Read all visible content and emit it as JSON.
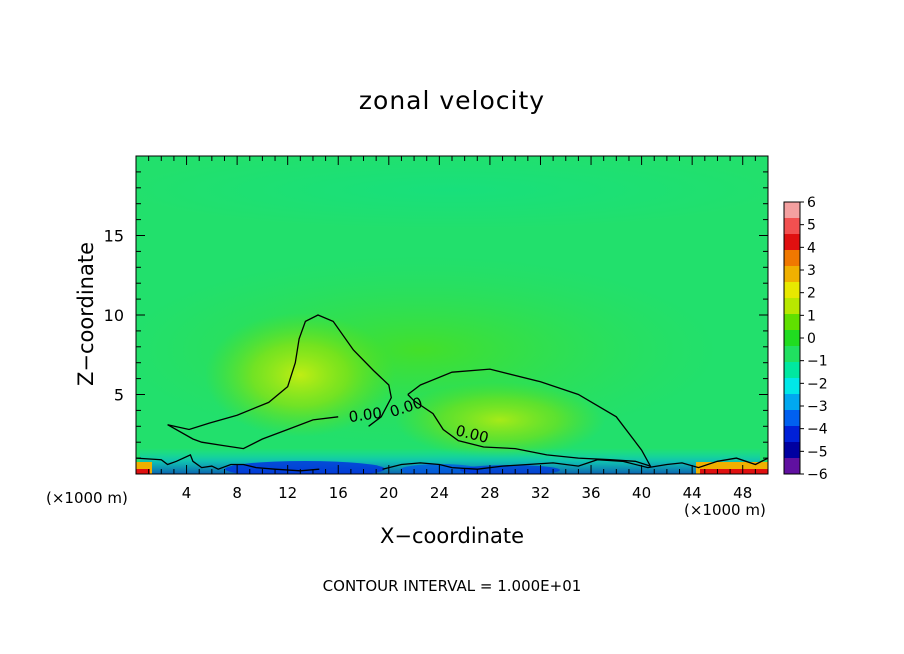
{
  "chart_data": {
    "type": "heatmap",
    "title": "zonal velocity",
    "xlabel": "X−coordinate",
    "ylabel": "Z−coordinate",
    "x_unit_note": "(×1000 m)",
    "z_unit_note": "(×1000 m)",
    "footnote": "CONTOUR INTERVAL = 1.000E+01",
    "xlim": [
      0,
      50
    ],
    "ylim": [
      0,
      20
    ],
    "x_ticks": [
      4,
      8,
      12,
      16,
      20,
      24,
      28,
      32,
      36,
      40,
      44,
      48
    ],
    "y_ticks": [
      5,
      10,
      15
    ],
    "colorbar": {
      "labels": [
        "6",
        "5",
        "4",
        "3",
        "2",
        "1",
        "0",
        "−1",
        "−2",
        "−3",
        "−4",
        "−5",
        "−6"
      ],
      "colors": [
        "#f4a0a0",
        "#f25050",
        "#e01010",
        "#f07800",
        "#f0b000",
        "#e8e800",
        "#b8e800",
        "#60e000",
        "#20dc20",
        "#20e060",
        "#00e8a0",
        "#00e8e8",
        "#00a8f0",
        "#0060f0",
        "#0020d8",
        "#0000a0",
        "#6010a0"
      ]
    },
    "contour_label": "0.00",
    "contours": [
      {
        "label": "0.00",
        "points": [
          [
            2.5,
            3.1
          ],
          [
            4.2,
            2.8
          ],
          [
            5.8,
            3.2
          ],
          [
            8,
            3.7
          ],
          [
            10.5,
            4.5
          ],
          [
            12,
            5.5
          ],
          [
            12.6,
            7
          ],
          [
            12.9,
            8.5
          ],
          [
            13.4,
            9.6
          ],
          [
            14.4,
            10
          ],
          [
            15.6,
            9.6
          ],
          [
            17.2,
            7.8
          ],
          [
            18.8,
            6.5
          ],
          [
            20,
            5.6
          ],
          [
            20.2,
            4.8
          ],
          [
            19.4,
            3.6
          ],
          [
            18.4,
            3
          ]
        ]
      },
      {
        "label": "0.00",
        "points": [
          [
            2.5,
            3.1
          ],
          [
            4.5,
            2.2
          ],
          [
            5.2,
            2
          ],
          [
            6.8,
            1.8
          ],
          [
            8.5,
            1.6
          ],
          [
            10,
            2.2
          ],
          [
            12,
            2.8
          ],
          [
            14,
            3.4
          ],
          [
            16,
            3.6
          ]
        ]
      },
      {
        "label": "0.00",
        "points": [
          [
            21.5,
            5
          ],
          [
            22,
            4.6
          ],
          [
            23.5,
            3.8
          ],
          [
            24.3,
            2.8
          ],
          [
            25.5,
            2.1
          ],
          [
            27.5,
            1.7
          ],
          [
            30,
            1.6
          ],
          [
            32.5,
            1.2
          ],
          [
            35,
            1
          ],
          [
            37.5,
            0.9
          ],
          [
            39.5,
            0.8
          ],
          [
            40.7,
            0.5
          ],
          [
            40,
            1.5
          ],
          [
            38,
            3.6
          ],
          [
            35,
            5
          ],
          [
            32,
            5.8
          ],
          [
            28,
            6.6
          ],
          [
            25,
            6.4
          ],
          [
            22.5,
            5.6
          ],
          [
            21.5,
            5
          ]
        ]
      },
      {
        "label": "",
        "points": [
          [
            0,
            1
          ],
          [
            2,
            0.9
          ],
          [
            2.5,
            0.6
          ],
          [
            3.2,
            0.8
          ],
          [
            4.3,
            1.2
          ],
          [
            4.5,
            0.8
          ],
          [
            5.2,
            0.4
          ],
          [
            6,
            0.5
          ],
          [
            6.5,
            0.3
          ],
          [
            7.5,
            0.6
          ],
          [
            8.5,
            0.6
          ],
          [
            9.5,
            0.4
          ],
          [
            11,
            0.3
          ],
          [
            13,
            0.2
          ],
          [
            14.5,
            0.3
          ]
        ]
      },
      {
        "label": "",
        "points": [
          [
            19.5,
            0.3
          ],
          [
            21,
            0.6
          ],
          [
            22.5,
            0.7
          ],
          [
            24,
            0.6
          ],
          [
            25,
            0.4
          ],
          [
            27,
            0.3
          ],
          [
            29,
            0.5
          ],
          [
            31,
            0.6
          ],
          [
            33,
            0.7
          ],
          [
            35,
            0.5
          ],
          [
            36.5,
            0.9
          ],
          [
            38.5,
            0.8
          ],
          [
            40.5,
            0.4
          ],
          [
            42,
            0.6
          ],
          [
            43.2,
            0.7
          ],
          [
            44.5,
            0.4
          ],
          [
            46,
            0.8
          ],
          [
            47.5,
            1
          ],
          [
            49,
            0.6
          ],
          [
            50,
            1
          ]
        ]
      }
    ]
  }
}
